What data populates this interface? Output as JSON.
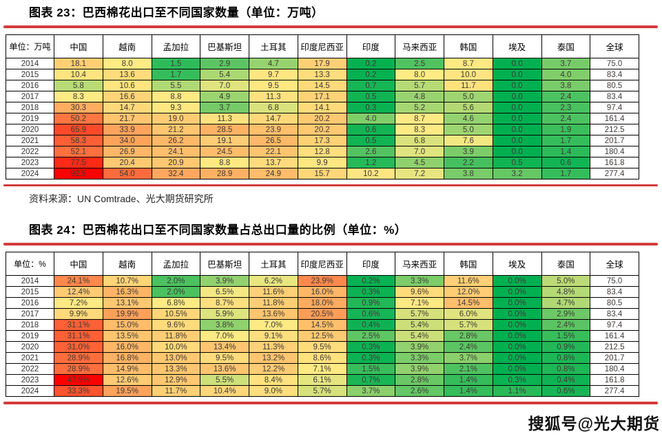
{
  "page": {
    "watermark": "搜狐号@光大期货",
    "rule_color": "#D33B3C"
  },
  "colorscale": {
    "min_color": "#00B050",
    "mid_color": "#FFEB84",
    "max_color": "#FF0000",
    "midpoint": "median",
    "note": "red-yellow-green 3-color scale applied per table to all country columns (全球 column excluded)"
  },
  "chart_data": [
    {
      "type": "table",
      "id": "figure-23",
      "title": "图表 23：巴西棉花出口至不同国家数量（单位：万吨）",
      "unit_header": "单位：万吨",
      "columns": [
        "中国",
        "越南",
        "孟加拉",
        "巴基斯坦",
        "土耳其",
        "印度尼西亚",
        "印度",
        "马来西亚",
        "韩国",
        "埃及",
        "泰国",
        "全球"
      ],
      "rows": [
        {
          "year": "2014",
          "values": [
            "18.1",
            "8.0",
            "1.5",
            "2.9",
            "4.7",
            "17.9",
            "0.2",
            "2.5",
            "8.7",
            "0.0",
            "3.7",
            "75.0"
          ]
        },
        {
          "year": "2015",
          "values": [
            "10.4",
            "13.6",
            "1.7",
            "5.4",
            "9.7",
            "13.3",
            "0.2",
            "8.0",
            "10.0",
            "0.0",
            "4.0",
            "83.4"
          ]
        },
        {
          "year": "2016",
          "values": [
            "5.8",
            "10.6",
            "5.5",
            "7.0",
            "9.5",
            "14.5",
            "0.7",
            "5.7",
            "11.7",
            "0.0",
            "3.8",
            "80.5"
          ]
        },
        {
          "year": "2017",
          "values": [
            "8.3",
            "16.6",
            "8.8",
            "4.9",
            "11.3",
            "17.1",
            "0.5",
            "4.8",
            "5.0",
            "0.0",
            "2.4",
            "83.4"
          ]
        },
        {
          "year": "2018",
          "values": [
            "30.3",
            "14.7",
            "9.3",
            "3.7",
            "6.8",
            "14.1",
            "0.3",
            "5.2",
            "5.6",
            "0.0",
            "2.3",
            "97.4"
          ]
        },
        {
          "year": "2019",
          "values": [
            "50.2",
            "21.7",
            "19.0",
            "11.3",
            "14.7",
            "20.2",
            "4.0",
            "8.7",
            "4.6",
            "0.0",
            "2.4",
            "161.4"
          ]
        },
        {
          "year": "2020",
          "values": [
            "65.9",
            "33.9",
            "21.2",
            "28.5",
            "23.9",
            "20.2",
            "0.6",
            "8.3",
            "5.0",
            "0.0",
            "1.9",
            "212.5"
          ]
        },
        {
          "year": "2021",
          "values": [
            "58.3",
            "34.0",
            "26.2",
            "19.1",
            "26.5",
            "17.3",
            "0.5",
            "6.8",
            "7.6",
            "0.0",
            "1.7",
            "201.7"
          ]
        },
        {
          "year": "2022",
          "values": [
            "52.1",
            "26.9",
            "24.1",
            "24.5",
            "22.1",
            "12.8",
            "2.6",
            "7.0",
            "3.9",
            "0.0",
            "1.4",
            "180.4"
          ]
        },
        {
          "year": "2023",
          "values": [
            "77.5",
            "20.4",
            "20.9",
            "8.8",
            "13.7",
            "9.9",
            "1.2",
            "4.5",
            "2.2",
            "0.5",
            "0.6",
            "161.8"
          ]
        },
        {
          "year": "2024",
          "values": [
            "92.5",
            "54.0",
            "32.4",
            "28.9",
            "24.9",
            "15.7",
            "10.2",
            "7.2",
            "3.8",
            "3.2",
            "1.7",
            "277.4"
          ]
        }
      ],
      "source": "资料来源：UN Comtrade、光大期货研究所"
    },
    {
      "type": "table",
      "id": "figure-24",
      "title": "图表 24：巴西棉花出口至不同国家数量占总出口量的比例（单位：%）",
      "unit_header": "单位：%",
      "columns": [
        "中国",
        "越南",
        "孟加拉",
        "巴基斯坦",
        "土耳其",
        "印度尼西亚",
        "印度",
        "马来西亚",
        "韩国",
        "埃及",
        "泰国",
        "全球"
      ],
      "rows": [
        {
          "year": "2014",
          "values": [
            "24.1%",
            "10.7%",
            "2.0%",
            "3.9%",
            "6.2%",
            "23.9%",
            "0.2%",
            "3.3%",
            "11.6%",
            "0.0%",
            "5.0%",
            "75.0"
          ]
        },
        {
          "year": "2015",
          "values": [
            "12.4%",
            "16.3%",
            "2.0%",
            "6.5%",
            "11.6%",
            "16.0%",
            "0.3%",
            "9.6%",
            "12.0%",
            "0.0%",
            "4.8%",
            "83.4"
          ]
        },
        {
          "year": "2016",
          "values": [
            "7.2%",
            "13.1%",
            "6.8%",
            "8.7%",
            "11.8%",
            "18.0%",
            "0.9%",
            "7.1%",
            "14.5%",
            "0.0%",
            "4.7%",
            "80.5"
          ]
        },
        {
          "year": "2017",
          "values": [
            "9.9%",
            "19.9%",
            "10.5%",
            "5.9%",
            "13.6%",
            "20.5%",
            "0.6%",
            "5.7%",
            "6.0%",
            "0.0%",
            "2.9%",
            "83.4"
          ]
        },
        {
          "year": "2018",
          "values": [
            "31.1%",
            "15.0%",
            "9.6%",
            "3.8%",
            "7.0%",
            "14.5%",
            "0.4%",
            "5.4%",
            "5.7%",
            "0.0%",
            "2.4%",
            "97.4"
          ]
        },
        {
          "year": "2019",
          "values": [
            "31.1%",
            "13.5%",
            "11.8%",
            "7.0%",
            "9.1%",
            "12.5%",
            "2.5%",
            "5.4%",
            "2.8%",
            "0.0%",
            "1.5%",
            "161.4"
          ]
        },
        {
          "year": "2020",
          "values": [
            "31.0%",
            "16.0%",
            "10.0%",
            "13.4%",
            "11.3%",
            "9.5%",
            "0.3%",
            "3.9%",
            "2.4%",
            "0.0%",
            "0.9%",
            "212.5"
          ]
        },
        {
          "year": "2021",
          "values": [
            "28.9%",
            "16.8%",
            "13.0%",
            "9.5%",
            "13.2%",
            "8.6%",
            "0.3%",
            "3.3%",
            "3.7%",
            "0.0%",
            "0.8%",
            "201.7"
          ]
        },
        {
          "year": "2022",
          "values": [
            "28.9%",
            "14.9%",
            "13.3%",
            "13.6%",
            "12.2%",
            "7.1%",
            "1.5%",
            "3.9%",
            "2.1%",
            "0.0%",
            "0.8%",
            "180.4"
          ]
        },
        {
          "year": "2023",
          "values": [
            "47.9%",
            "12.6%",
            "12.9%",
            "5.5%",
            "8.4%",
            "6.1%",
            "0.7%",
            "2.8%",
            "1.4%",
            "0.3%",
            "0.4%",
            "161.8"
          ]
        },
        {
          "year": "2024",
          "values": [
            "33.3%",
            "19.5%",
            "11.7%",
            "10.4%",
            "9.0%",
            "5.7%",
            "3.7%",
            "2.6%",
            "1.4%",
            "1.1%",
            "0.6%",
            "277.4"
          ]
        }
      ]
    }
  ]
}
